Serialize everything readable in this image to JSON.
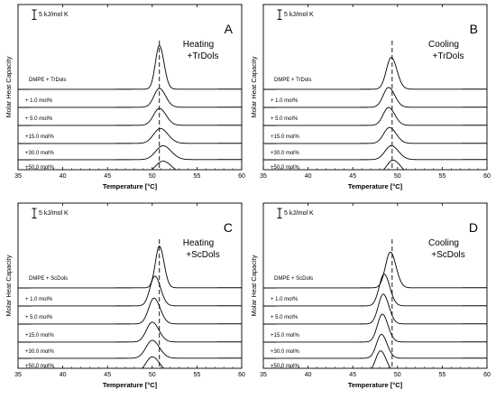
{
  "colors": {
    "curve": "#000000",
    "frame": "#000000",
    "dashed": "#000000",
    "background": "#ffffff"
  },
  "chart_data": [
    {
      "type": "line",
      "panel_letter": "A",
      "condition": "Heating",
      "additive": "+TrDols",
      "xlabel": "Temperature [°C]",
      "ylabel": "Molar Heat Capacity",
      "scale_bar_label": "5 kJ/mol K",
      "xlim": [
        35,
        60
      ],
      "x_ticks": [
        "35",
        "40",
        "45",
        "50",
        "55",
        "60"
      ],
      "dashed_line_x": 50.8,
      "series": [
        {
          "name": "DMPE + TrDols",
          "peak_temperature": 50.8,
          "peak_height": 22,
          "peak_width": 0.45
        },
        {
          "name": "+ 1.0 mol%",
          "peak_temperature": 50.8,
          "peak_height": 9.5,
          "peak_width": 0.6
        },
        {
          "name": "+ 5.0 mol%",
          "peak_temperature": 50.8,
          "peak_height": 8.5,
          "peak_width": 0.65
        },
        {
          "name": "+15.0 mol%",
          "peak_temperature": 50.9,
          "peak_height": 7.5,
          "peak_width": 0.75
        },
        {
          "name": "+30.0 mol%",
          "peak_temperature": 51.2,
          "peak_height": 7.0,
          "peak_width": 0.8
        },
        {
          "name": "+50.0 mol%",
          "peak_temperature": 51.2,
          "peak_height": 6.5,
          "peak_width": 0.85
        }
      ]
    },
    {
      "type": "line",
      "panel_letter": "B",
      "condition": "Cooling",
      "additive": "+TrDols",
      "xlabel": "Temperature [°C]",
      "ylabel": "Molar Heat Capacity",
      "scale_bar_label": "5 kJ/mol K",
      "xlim": [
        35,
        60
      ],
      "x_ticks": [
        "35",
        "40",
        "45",
        "50",
        "55",
        "60"
      ],
      "dashed_line_x": 49.4,
      "series": [
        {
          "name": "DMPE + TrDols",
          "peak_temperature": 49.3,
          "peak_height": 16,
          "peak_width": 0.55
        },
        {
          "name": "+ 1.0 mol%",
          "peak_temperature": 49.0,
          "peak_height": 10,
          "peak_width": 0.6
        },
        {
          "name": "+ 5.0 mol%",
          "peak_temperature": 49.0,
          "peak_height": 9,
          "peak_width": 0.6
        },
        {
          "name": "+15.0 mol%",
          "peak_temperature": 49.1,
          "peak_height": 8,
          "peak_width": 0.65
        },
        {
          "name": "+30.0 mol%",
          "peak_temperature": 49.3,
          "peak_height": 7,
          "peak_width": 0.7
        },
        {
          "name": "+50.0 mol%",
          "peak_temperature": 49.5,
          "peak_height": 7,
          "peak_width": 0.7
        }
      ]
    },
    {
      "type": "line",
      "panel_letter": "C",
      "condition": "Heating",
      "additive": "+ScDols",
      "xlabel": "Temperature [°C]",
      "ylabel": "Molar Heat Capacity",
      "scale_bar_label": "5 kJ/mol K",
      "xlim": [
        35,
        60
      ],
      "x_ticks": [
        "35",
        "40",
        "45",
        "50",
        "55",
        "60"
      ],
      "dashed_line_x": 50.8,
      "series": [
        {
          "name": "DMPE + ScDols",
          "peak_temperature": 50.8,
          "peak_height": 21,
          "peak_width": 0.45
        },
        {
          "name": "+ 1.0 mol%",
          "peak_temperature": 50.3,
          "peak_height": 15,
          "peak_width": 0.55
        },
        {
          "name": "+ 5.0 mol%",
          "peak_temperature": 50.2,
          "peak_height": 13,
          "peak_width": 0.6
        },
        {
          "name": "+15.0 mol%",
          "peak_temperature": 50.0,
          "peak_height": 10,
          "peak_width": 0.65
        },
        {
          "name": "+30.0 mol%",
          "peak_temperature": 50.0,
          "peak_height": 9,
          "peak_width": 0.7
        },
        {
          "name": "+50.0 mol%",
          "peak_temperature": 50.0,
          "peak_height": 8,
          "peak_width": 0.7
        }
      ]
    },
    {
      "type": "line",
      "panel_letter": "D",
      "condition": "Cooling",
      "additive": "+ScDols",
      "xlabel": "Temperature [°C]",
      "ylabel": "Molar Heat Capacity",
      "scale_bar_label": "5 kJ/mol K",
      "xlim": [
        35,
        60
      ],
      "x_ticks": [
        "35",
        "40",
        "45",
        "50",
        "55",
        "60"
      ],
      "dashed_line_x": 49.4,
      "series": [
        {
          "name": "DMPE + ScDols",
          "peak_temperature": 49.2,
          "peak_height": 18,
          "peak_width": 0.55
        },
        {
          "name": "+ 1.0 mol%",
          "peak_temperature": 48.5,
          "peak_height": 16,
          "peak_width": 0.55
        },
        {
          "name": "+ 5.0 mol%",
          "peak_temperature": 48.4,
          "peak_height": 15,
          "peak_width": 0.55
        },
        {
          "name": "+15.0 mol%",
          "peak_temperature": 48.3,
          "peak_height": 14,
          "peak_width": 0.55
        },
        {
          "name": "+30.0 mol%",
          "peak_temperature": 48.2,
          "peak_height": 12,
          "peak_width": 0.55
        },
        {
          "name": "+50.0 mol%",
          "peak_temperature": 48.1,
          "peak_height": 11,
          "peak_width": 0.55
        }
      ]
    }
  ]
}
